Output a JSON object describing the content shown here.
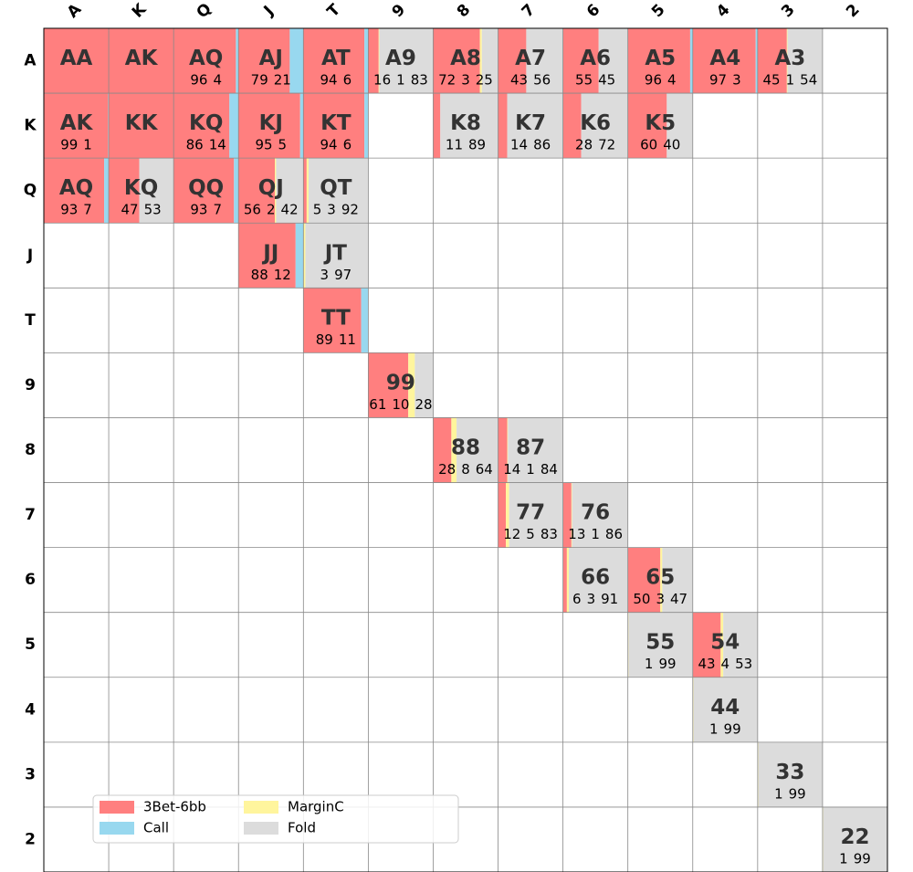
{
  "chart_data": {
    "type": "range-grid",
    "rows": [
      "A",
      "K",
      "Q",
      "J",
      "T",
      "9",
      "8",
      "7",
      "6",
      "5",
      "4",
      "3",
      "2"
    ],
    "columns": [
      "A",
      "K",
      "Q",
      "J",
      "T",
      "9",
      "8",
      "7",
      "6",
      "5",
      "4",
      "3",
      "2"
    ],
    "series": [
      {
        "name": "3Bet-6bb",
        "color": "#ff7f7f"
      },
      {
        "name": "Call",
        "color": "#98d8ef"
      },
      {
        "name": "MarginC",
        "color": "#fff59d"
      },
      {
        "name": "Fold",
        "color": "#dcdcdc"
      }
    ],
    "cells": [
      [
        {
          "label": "AA",
          "values": [
            100,
            0,
            0,
            0
          ]
        },
        {
          "label": "AK",
          "values": [
            100,
            0,
            0,
            0
          ]
        },
        {
          "label": "AQ",
          "values": [
            96,
            4,
            0,
            0
          ]
        },
        {
          "label": "AJ",
          "values": [
            79,
            21,
            0,
            0
          ]
        },
        {
          "label": "AT",
          "values": [
            94,
            6,
            0,
            0
          ]
        },
        {
          "label": "A9",
          "values": [
            16,
            0,
            1,
            83
          ]
        },
        {
          "label": "A8",
          "values": [
            72,
            0,
            3,
            25
          ]
        },
        {
          "label": "A7",
          "values": [
            43,
            0,
            0,
            56
          ]
        },
        {
          "label": "A6",
          "values": [
            55,
            0,
            0,
            45
          ]
        },
        {
          "label": "A5",
          "values": [
            96,
            4,
            0,
            0
          ]
        },
        {
          "label": "A4",
          "values": [
            97,
            3,
            0,
            0
          ]
        },
        {
          "label": "A3",
          "values": [
            45,
            0,
            1,
            54
          ]
        },
        null
      ],
      [
        {
          "label": "AK",
          "values": [
            99,
            1,
            0,
            0
          ]
        },
        {
          "label": "KK",
          "values": [
            100,
            0,
            0,
            0
          ]
        },
        {
          "label": "KQ",
          "values": [
            86,
            14,
            0,
            0
          ]
        },
        {
          "label": "KJ",
          "values": [
            95,
            5,
            0,
            0
          ]
        },
        {
          "label": "KT",
          "values": [
            94,
            6,
            0,
            0
          ]
        },
        null,
        {
          "label": "K8",
          "values": [
            11,
            0,
            0,
            89
          ]
        },
        {
          "label": "K7",
          "values": [
            14,
            0,
            0,
            86
          ]
        },
        {
          "label": "K6",
          "values": [
            28,
            0,
            0,
            72
          ]
        },
        {
          "label": "K5",
          "values": [
            60,
            0,
            0,
            40
          ]
        },
        null,
        null,
        null
      ],
      [
        {
          "label": "AQ",
          "values": [
            93,
            7,
            0,
            0
          ]
        },
        {
          "label": "KQ",
          "values": [
            47,
            0,
            0,
            53
          ]
        },
        {
          "label": "QQ",
          "values": [
            93,
            7,
            0,
            0
          ]
        },
        {
          "label": "QJ",
          "values": [
            56,
            0,
            2,
            42
          ]
        },
        {
          "label": "QT",
          "values": [
            5,
            0,
            3,
            92
          ]
        },
        null,
        null,
        null,
        null,
        null,
        null,
        null,
        null
      ],
      [
        null,
        null,
        null,
        {
          "label": "JJ",
          "values": [
            88,
            12,
            0,
            0
          ]
        },
        {
          "label": "JT",
          "values": [
            0,
            0,
            3,
            97
          ]
        },
        null,
        null,
        null,
        null,
        null,
        null,
        null,
        null
      ],
      [
        null,
        null,
        null,
        null,
        {
          "label": "TT",
          "values": [
            89,
            11,
            0,
            0
          ]
        },
        null,
        null,
        null,
        null,
        null,
        null,
        null,
        null
      ],
      [
        null,
        null,
        null,
        null,
        null,
        {
          "label": "99",
          "values": [
            61,
            0,
            10,
            28
          ]
        },
        null,
        null,
        null,
        null,
        null,
        null,
        null
      ],
      [
        null,
        null,
        null,
        null,
        null,
        null,
        {
          "label": "88",
          "values": [
            28,
            0,
            8,
            64
          ]
        },
        {
          "label": "87",
          "values": [
            14,
            0,
            1,
            84
          ]
        },
        null,
        null,
        null,
        null,
        null
      ],
      [
        null,
        null,
        null,
        null,
        null,
        null,
        null,
        {
          "label": "77",
          "values": [
            12,
            0,
            5,
            83
          ]
        },
        {
          "label": "76",
          "values": [
            13,
            0,
            1,
            86
          ]
        },
        null,
        null,
        null,
        null
      ],
      [
        null,
        null,
        null,
        null,
        null,
        null,
        null,
        null,
        {
          "label": "66",
          "values": [
            6,
            0,
            3,
            91
          ]
        },
        {
          "label": "65",
          "values": [
            50,
            0,
            3,
            47
          ]
        },
        null,
        null,
        null
      ],
      [
        null,
        null,
        null,
        null,
        null,
        null,
        null,
        null,
        null,
        {
          "label": "55",
          "values": [
            0,
            0,
            1,
            99
          ]
        },
        {
          "label": "54",
          "values": [
            43,
            0,
            4,
            53
          ]
        },
        null,
        null
      ],
      [
        null,
        null,
        null,
        null,
        null,
        null,
        null,
        null,
        null,
        null,
        {
          "label": "44",
          "values": [
            0,
            0,
            1,
            99
          ]
        },
        null,
        null
      ],
      [
        null,
        null,
        null,
        null,
        null,
        null,
        null,
        null,
        null,
        null,
        null,
        {
          "label": "33",
          "values": [
            0,
            0,
            1,
            99
          ]
        },
        null
      ],
      [
        null,
        null,
        null,
        null,
        null,
        null,
        null,
        null,
        null,
        null,
        null,
        null,
        {
          "label": "22",
          "values": [
            0,
            0,
            1,
            99
          ]
        }
      ]
    ]
  }
}
